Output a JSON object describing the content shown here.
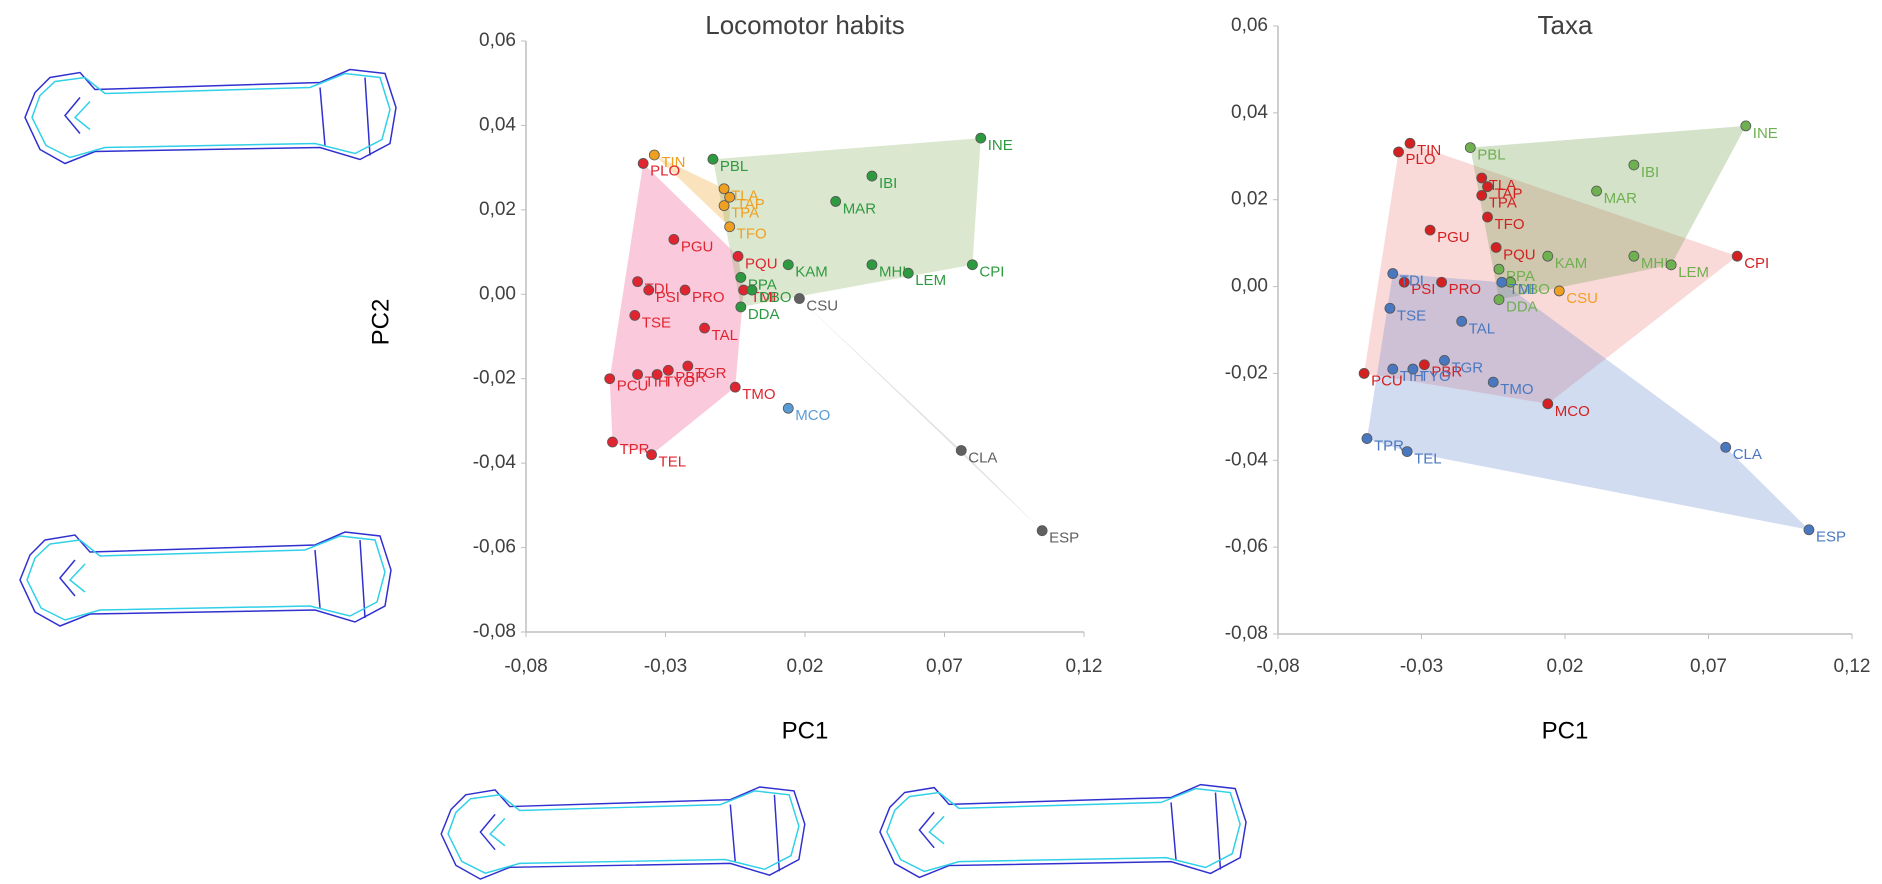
{
  "chart_data": [
    {
      "type": "scatter",
      "title": "Locomotor habits",
      "x_label": "PC1",
      "y_label": "PC2",
      "xlim": [
        -0.08,
        0.12
      ],
      "ylim": [
        -0.08,
        0.06
      ],
      "xticks": [
        {
          "value": -0.08,
          "label": "-0,08"
        },
        {
          "value": -0.03,
          "label": "-0,03"
        },
        {
          "value": 0.02,
          "label": "0,02"
        },
        {
          "value": 0.07,
          "label": "0,07"
        },
        {
          "value": 0.12,
          "label": "0,12"
        }
      ],
      "yticks": [
        {
          "value": 0.06,
          "label": "0,06"
        },
        {
          "value": 0.04,
          "label": "0,04"
        },
        {
          "value": 0.02,
          "label": "0,02"
        },
        {
          "value": 0,
          "label": "0,00"
        },
        {
          "value": -0.02,
          "label": "-0,02"
        },
        {
          "value": -0.04,
          "label": "-0,04"
        },
        {
          "value": -0.06,
          "label": "-0,06"
        },
        {
          "value": -0.08,
          "label": "-0,08"
        }
      ],
      "groups": [
        {
          "color": "#f0a020",
          "area_color": "#f0a020",
          "labels": [
            "TIN",
            "TLA",
            "TAP",
            "TPA",
            "TFO"
          ],
          "x": [
            -0.034,
            -0.009,
            -0.007,
            -0.009,
            -0.007
          ],
          "y": [
            0.033,
            0.025,
            0.023,
            0.021,
            0.016
          ]
        },
        {
          "color": "#e02530",
          "area_color": "#f0508a",
          "labels": [
            "PLO",
            "PGU",
            "PQU",
            "TDI",
            "PRO",
            "PSI",
            "TMI",
            "TSE",
            "TAL",
            "TIH",
            "PCU",
            "TYO",
            "PBR",
            "TGR",
            "TMO",
            "TPR",
            "TEL"
          ],
          "x": [
            -0.038,
            -0.027,
            -0.004,
            -0.04,
            -0.023,
            -0.036,
            -0.002,
            -0.041,
            -0.016,
            -0.04,
            -0.05,
            -0.033,
            -0.029,
            -0.022,
            -0.005,
            -0.049,
            -0.035
          ],
          "y": [
            0.031,
            0.013,
            0.009,
            0.003,
            0.001,
            0.001,
            0.001,
            -0.005,
            -0.008,
            -0.019,
            -0.02,
            -0.019,
            -0.018,
            -0.017,
            -0.022,
            -0.035,
            -0.038
          ]
        },
        {
          "color": "#2e9a40",
          "area_color": "#8ab060",
          "labels": [
            "PBL",
            "PPA",
            "KAM",
            "DBO",
            "DDA",
            "IBI",
            "MAR",
            "INE",
            "MHI",
            "LEM",
            "CPI"
          ],
          "x": [
            -0.013,
            -0.003,
            0.014,
            0.001,
            -0.003,
            0.044,
            0.031,
            0.083,
            0.044,
            0.057,
            0.08
          ],
          "y": [
            0.032,
            0.004,
            0.007,
            0.001,
            -0.003,
            0.028,
            0.022,
            0.037,
            0.007,
            0.005,
            0.007
          ]
        },
        {
          "color": "#5b9bd5",
          "area_color": "#5b9bd5",
          "labels": [
            "MCO"
          ],
          "x": [
            0.014
          ],
          "y": [
            -0.027
          ]
        },
        {
          "color": "#606060",
          "area_color": "#a0a0a0",
          "labels": [
            "CSU",
            "CLA",
            "ESP"
          ],
          "x": [
            0.018,
            0.076,
            0.105
          ],
          "y": [
            -0.001,
            -0.037,
            -0.056
          ]
        }
      ]
    },
    {
      "type": "scatter",
      "title": "Taxa",
      "x_label": "PC1",
      "xlim": [
        -0.08,
        0.12
      ],
      "ylim": [
        -0.08,
        0.06
      ],
      "xticks": [
        {
          "value": -0.08,
          "label": "-0,08"
        },
        {
          "value": -0.03,
          "label": "-0,03"
        },
        {
          "value": 0.02,
          "label": "0,02"
        },
        {
          "value": 0.07,
          "label": "0,07"
        },
        {
          "value": 0.12,
          "label": "0,12"
        }
      ],
      "yticks": [
        {
          "value": 0.06,
          "label": "0,06"
        },
        {
          "value": 0.04,
          "label": "0,04"
        },
        {
          "value": 0.02,
          "label": "0,02"
        },
        {
          "value": 0,
          "label": "0,00"
        },
        {
          "value": -0.02,
          "label": "-0,02"
        },
        {
          "value": -0.04,
          "label": "-0,04"
        },
        {
          "value": -0.06,
          "label": "-0,06"
        },
        {
          "value": -0.08,
          "label": "-0,08"
        }
      ],
      "groups": [
        {
          "color": "#d42020",
          "area_color": "#f08080",
          "labels": [
            "TIN",
            "PLO",
            "TLA",
            "TAP",
            "TPA",
            "TFO",
            "PGU",
            "PQU",
            "PRO",
            "PSI",
            "CPI",
            "PCU",
            "PBR",
            "MCO"
          ],
          "x": [
            -0.034,
            -0.038,
            -0.009,
            -0.007,
            -0.009,
            -0.007,
            -0.027,
            -0.004,
            -0.023,
            -0.036,
            0.08,
            -0.05,
            -0.029,
            0.014
          ],
          "y": [
            0.033,
            0.031,
            0.025,
            0.023,
            0.021,
            0.016,
            0.013,
            0.009,
            0.001,
            0.001,
            0.007,
            -0.02,
            -0.018,
            -0.027
          ]
        },
        {
          "color": "#6fb050",
          "area_color": "#70a050",
          "labels": [
            "PBL",
            "PPA",
            "KAM",
            "DBO",
            "DDA",
            "IBI",
            "MAR",
            "INE",
            "MHI",
            "LEM"
          ],
          "x": [
            -0.013,
            -0.003,
            0.014,
            0.001,
            -0.003,
            0.044,
            0.031,
            0.083,
            0.044,
            0.057
          ],
          "y": [
            0.032,
            0.004,
            0.007,
            0.001,
            -0.003,
            0.028,
            0.022,
            0.037,
            0.007,
            0.005
          ]
        },
        {
          "color": "#4a78c0",
          "area_color": "#6a8cd0",
          "labels": [
            "TDI",
            "TMI",
            "TSE",
            "TAL",
            "TIH",
            "TYO",
            "TGR",
            "TMO",
            "TPR",
            "TEL",
            "CLA",
            "ESP"
          ],
          "x": [
            -0.04,
            -0.002,
            -0.041,
            -0.016,
            -0.04,
            -0.033,
            -0.022,
            -0.005,
            -0.049,
            -0.035,
            0.076,
            0.105
          ],
          "y": [
            0.003,
            0.001,
            -0.005,
            -0.008,
            -0.019,
            -0.019,
            -0.017,
            -0.022,
            -0.035,
            -0.038,
            -0.037,
            -0.056
          ]
        },
        {
          "color": "#f0a020",
          "area_color": "#f0a020",
          "labels": [
            "CSU"
          ],
          "x": [
            0.018
          ],
          "y": [
            -0.001
          ]
        }
      ]
    }
  ]
}
